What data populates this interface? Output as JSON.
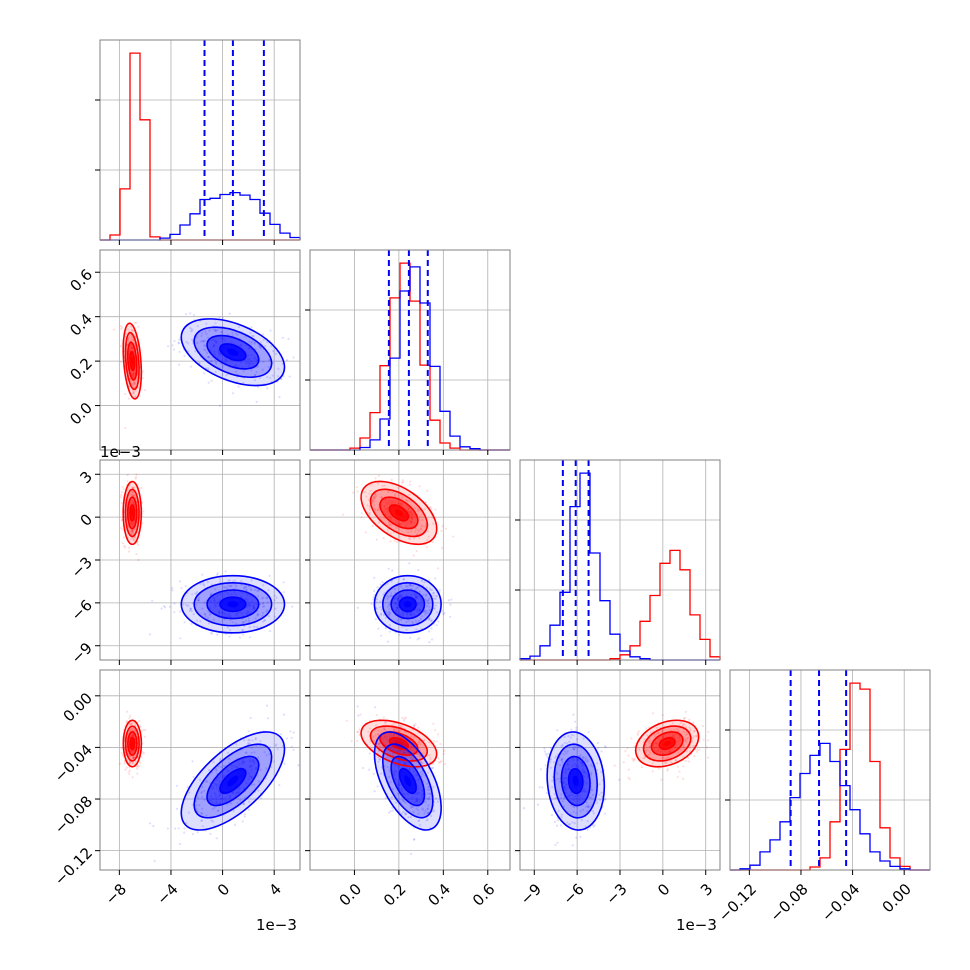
{
  "colors": {
    "series_a": "#ff0000",
    "series_b": "#0000ff",
    "grid": "#b0b0b0",
    "axes": "#808080"
  },
  "chart_data": {
    "type": "corner",
    "grid": true,
    "parameters": [
      {
        "id": "p1",
        "range": [
          -9.5,
          6
        ],
        "ticks": [
          -8,
          -4,
          0,
          4
        ],
        "tick_labels": [
          "−8",
          "−4",
          "0",
          "4"
        ],
        "offset": "1e−3"
      },
      {
        "id": "p2",
        "range": [
          -0.2,
          0.7
        ],
        "ticks": [
          0.0,
          0.2,
          0.4,
          0.6
        ],
        "tick_labels": [
          "0.0",
          "0.2",
          "0.4",
          "0.6"
        ],
        "offset": ""
      },
      {
        "id": "p3",
        "range": [
          -10,
          4
        ],
        "ticks": [
          -9,
          -6,
          -3,
          0,
          3
        ],
        "tick_labels": [
          "−9",
          "−6",
          "−3",
          "0",
          "3"
        ],
        "offset": "1e−3"
      },
      {
        "id": "p4",
        "range": [
          -0.135,
          0.02
        ],
        "ticks": [
          -0.12,
          -0.08,
          -0.04,
          0.0
        ],
        "tick_labels": [
          "−0.12",
          "−0.08",
          "−0.04",
          "0.00"
        ],
        "offset": ""
      }
    ],
    "series": [
      {
        "color": "#ff0000",
        "means": [
          -7.0,
          0.2,
          0.3,
          -0.037
        ],
        "stds": [
          0.35,
          0.085,
          1.1,
          0.009
        ],
        "correlations": {
          "1-0": -0.3,
          "2-0": 0.0,
          "3-0": 0.0,
          "2-1": -0.5,
          "3-1": -0.45,
          "3-2": 0.3
        }
      },
      {
        "color": "#0000ff",
        "means": [
          0.8,
          0.24,
          -6.1,
          -0.066
        ],
        "stds": [
          2.0,
          0.075,
          1.0,
          0.019
        ],
        "correlations": {
          "1-0": -0.45,
          "2-0": 0.0,
          "3-0": 0.65,
          "2-1": 0.0,
          "3-1": -0.55,
          "3-2": -0.1
        }
      }
    ],
    "quantiles_blue": [
      [
        -1.4,
        0.8,
        3.2
      ],
      [
        0.155,
        0.245,
        0.33
      ],
      [
        -7.0,
        -6.1,
        -5.2
      ],
      [
        -0.088,
        -0.066,
        -0.045
      ]
    ],
    "histograms": [
      {
        "edges": [
          -9.5,
          -8.725,
          -7.95,
          -7.175,
          -6.4,
          -5.625,
          -4.85,
          -4.075,
          -3.3,
          -2.525,
          -1.75,
          -0.975,
          -0.2,
          0.575,
          1.35,
          2.125,
          2.9,
          3.675,
          4.45,
          5.225,
          6.0
        ],
        "red": [
          0,
          0.8,
          8.2,
          30.0,
          19.3,
          0.5,
          0,
          0,
          0,
          0,
          0,
          0,
          0,
          0,
          0,
          0,
          0,
          0,
          0,
          0
        ],
        "blue": [
          0,
          0,
          0,
          0,
          0,
          0,
          0.3,
          0.9,
          2.4,
          4.2,
          6.5,
          6.7,
          7.3,
          7.6,
          7.2,
          6.5,
          4.3,
          2.5,
          1.1,
          0.4
        ]
      },
      {
        "edges": [
          -0.2,
          -0.155,
          -0.11,
          -0.065,
          -0.02,
          0.025,
          0.07,
          0.115,
          0.16,
          0.205,
          0.25,
          0.295,
          0.34,
          0.385,
          0.43,
          0.475,
          0.52,
          0.565,
          0.61,
          0.655,
          0.7
        ],
        "red": [
          0,
          0,
          0,
          0,
          0.3,
          1.9,
          5.9,
          13.3,
          24.0,
          29.5,
          23.5,
          13.4,
          4.7,
          1.1,
          0.3,
          0,
          0,
          0,
          0,
          0
        ],
        "blue": [
          0,
          0,
          0,
          0,
          0,
          0.4,
          1.6,
          4.9,
          14.5,
          25.1,
          28.9,
          23.2,
          13.2,
          6.1,
          2.2,
          0.5,
          0.2,
          0,
          0,
          0
        ]
      },
      {
        "edges": [
          -10.0,
          -9.3,
          -8.6,
          -7.9,
          -7.2,
          -6.5,
          -5.8,
          -5.1,
          -4.4,
          -3.7,
          -3.0,
          -2.3,
          -1.6,
          -0.9,
          -0.2,
          0.5,
          1.2,
          1.9,
          2.6,
          3.3,
          4.0
        ],
        "red": [
          0,
          0,
          0,
          0,
          0,
          0,
          0,
          0,
          0,
          0.2,
          0.8,
          2.2,
          6.0,
          10.0,
          15.0,
          17.0,
          14.0,
          7.0,
          3.2,
          0.5
        ],
        "blue": [
          0.2,
          0.6,
          2.2,
          5.4,
          10.5,
          23.8,
          29.0,
          16.6,
          9.2,
          4.0,
          1.4,
          0.5,
          0.2,
          0,
          0,
          0,
          0,
          0,
          0,
          0
        ]
      },
      {
        "edges": [
          -0.135,
          -0.12725,
          -0.1195,
          -0.11175,
          -0.104,
          -0.09625,
          -0.0885,
          -0.08075,
          -0.073,
          -0.06525,
          -0.0575,
          -0.04975,
          -0.042,
          -0.03425,
          -0.0265,
          -0.01875,
          -0.011,
          -0.00325,
          0.0045,
          0.01225,
          0.02
        ],
        "red": [
          0,
          0,
          0,
          0,
          0,
          0,
          0,
          0,
          0.5,
          2.0,
          8.0,
          20.0,
          31.0,
          30.0,
          18.0,
          7.0,
          2.0,
          0.6,
          0,
          0
        ],
        "blue": [
          0,
          0.2,
          0.8,
          3.0,
          5.0,
          8.0,
          12.0,
          16.0,
          19.0,
          21.0,
          18.0,
          14.0,
          10.0,
          6.0,
          3.0,
          1.5,
          0.6,
          0.2,
          0,
          0
        ]
      }
    ]
  }
}
